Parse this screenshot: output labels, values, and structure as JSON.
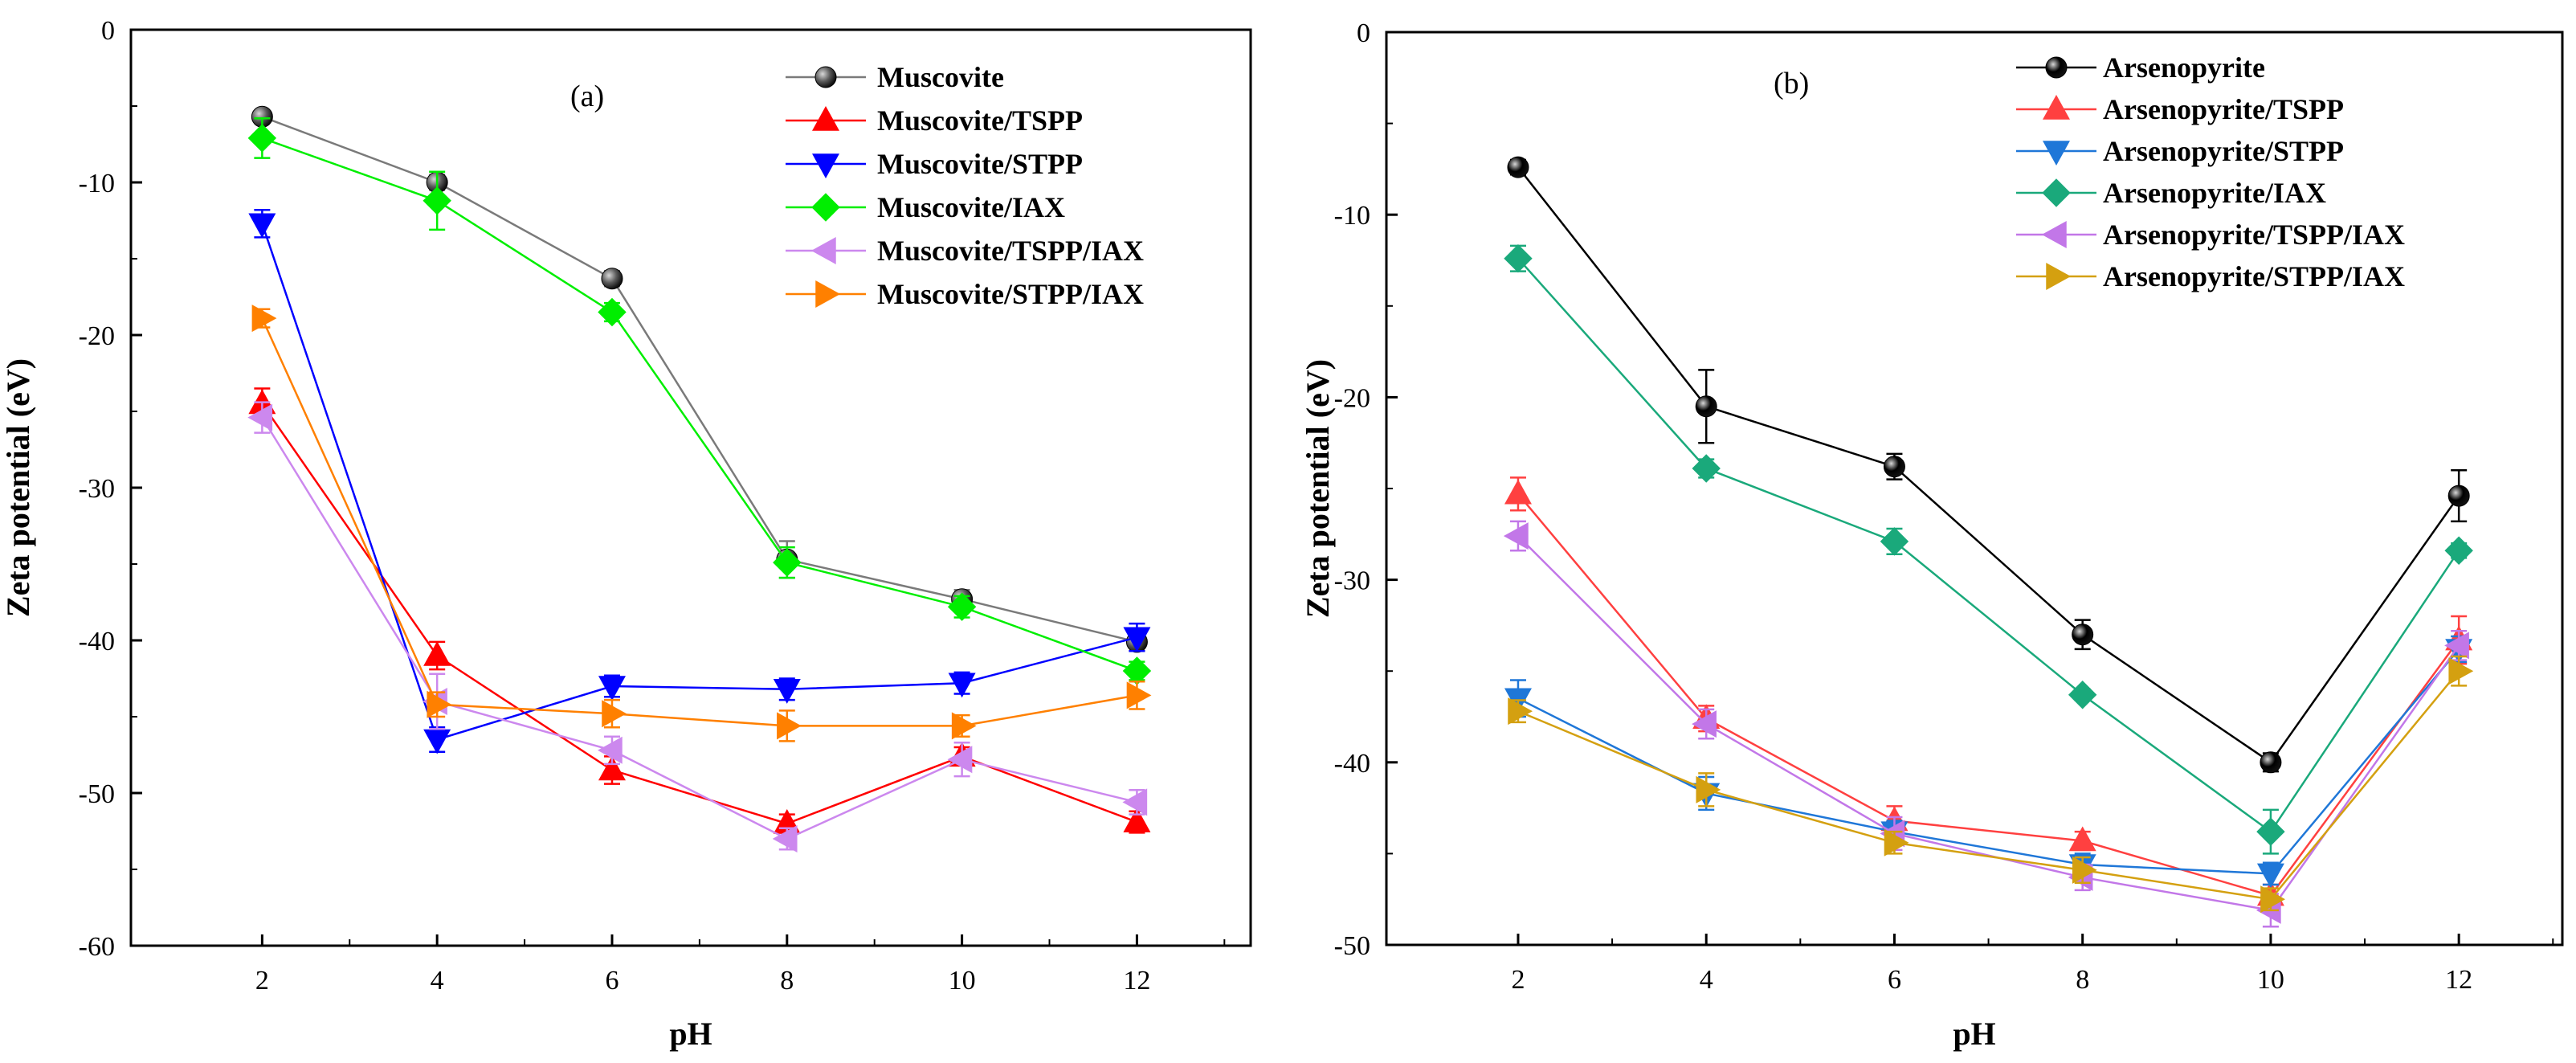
{
  "chart_data": [
    {
      "type": "line",
      "panel_label": "(a)",
      "xlabel": "pH",
      "ylabel": "Zeta potential (eV)",
      "x": [
        2,
        4,
        6,
        8,
        10,
        12
      ],
      "xlim": [
        0.5,
        13.3
      ],
      "ylim": [
        -60,
        0
      ],
      "xticks": [
        2,
        4,
        6,
        8,
        10,
        12
      ],
      "yticks": [
        0,
        -10,
        -20,
        -30,
        -40,
        -50,
        -60
      ],
      "legend_position": "top-right",
      "series": [
        {
          "name": "Muscovite",
          "color": "#5a5a5a",
          "line_color": "#7a7a7a",
          "marker": "circle",
          "values": [
            -5.7,
            -10.0,
            -16.3,
            -34.7,
            -37.3,
            -40.1
          ],
          "errors": [
            0.4,
            0.5,
            0.5,
            1.2,
            0.6,
            0.6
          ]
        },
        {
          "name": "Muscovite/TSPP",
          "color": "#ff0000",
          "line_color": "#ff0000",
          "marker": "triangle-up",
          "values": [
            -24.5,
            -41.0,
            -48.5,
            -52.0,
            -47.6,
            -51.9
          ],
          "errors": [
            1.0,
            0.9,
            0.9,
            0.6,
            0.6,
            0.7
          ]
        },
        {
          "name": "Muscovite/STPP",
          "color": "#0000ff",
          "line_color": "#0000ff",
          "marker": "triangle-down",
          "values": [
            -12.7,
            -46.5,
            -43.0,
            -43.2,
            -42.8,
            -39.8
          ],
          "errors": [
            0.9,
            0.8,
            0.7,
            0.7,
            0.7,
            0.9
          ]
        },
        {
          "name": "Muscovite/IAX",
          "color": "#00ee00",
          "line_color": "#00ee00",
          "marker": "diamond",
          "values": [
            -7.1,
            -11.2,
            -18.5,
            -34.9,
            -37.8,
            -42.0
          ],
          "errors": [
            1.3,
            1.9,
            0.6,
            1.0,
            0.7,
            0.6
          ]
        },
        {
          "name": "Muscovite/TSPP/IAX",
          "color": "#cc88ee",
          "line_color": "#cc88ee",
          "marker": "triangle-left",
          "values": [
            -25.4,
            -44.0,
            -47.2,
            -53.0,
            -47.8,
            -50.6
          ],
          "errors": [
            1.0,
            1.8,
            0.9,
            0.7,
            1.1,
            0.8
          ]
        },
        {
          "name": "Muscovite/STPP/IAX",
          "color": "#ff8000",
          "line_color": "#ff8000",
          "marker": "triangle-right",
          "values": [
            -18.9,
            -44.2,
            -44.8,
            -45.6,
            -45.6,
            -43.6
          ],
          "errors": [
            0.6,
            0.8,
            0.9,
            1.0,
            0.7,
            0.9
          ]
        }
      ]
    },
    {
      "type": "line",
      "panel_label": "(b)",
      "xlabel": "pH",
      "ylabel": "Zeta potential (eV)",
      "x": [
        2,
        4,
        6,
        8,
        10,
        12
      ],
      "xlim": [
        0.6,
        13.1
      ],
      "ylim": [
        -50,
        0
      ],
      "xticks": [
        2,
        4,
        6,
        8,
        10,
        12
      ],
      "yticks": [
        0,
        -10,
        -20,
        -30,
        -40,
        -50
      ],
      "legend_position": "top-right",
      "series": [
        {
          "name": "Arsenopyrite",
          "color": "#000000",
          "line_color": "#000000",
          "marker": "circle",
          "values": [
            -7.4,
            -20.5,
            -23.8,
            -33.0,
            -40.0,
            -25.4
          ],
          "errors": [
            0.4,
            2.0,
            0.7,
            0.8,
            0.5,
            1.4
          ]
        },
        {
          "name": "Arsenopyrite/TSPP",
          "color": "#ff4040",
          "line_color": "#ff4040",
          "marker": "triangle-up",
          "values": [
            -25.3,
            -37.6,
            -43.2,
            -44.3,
            -47.3,
            -33.3
          ],
          "errors": [
            0.9,
            0.7,
            0.8,
            0.5,
            0.6,
            1.3
          ]
        },
        {
          "name": "Arsenopyrite/STPP",
          "color": "#1f77d8",
          "line_color": "#1f77d8",
          "marker": "triangle-down",
          "values": [
            -36.5,
            -41.7,
            -43.8,
            -45.6,
            -46.1,
            -33.8
          ],
          "errors": [
            1.0,
            0.9,
            0.6,
            0.6,
            0.6,
            0.7
          ]
        },
        {
          "name": "Arsenopyrite/IAX",
          "color": "#1aa97b",
          "line_color": "#1aa97b",
          "marker": "diamond",
          "values": [
            -12.4,
            -23.9,
            -27.9,
            -36.3,
            -43.8,
            -28.4
          ],
          "errors": [
            0.7,
            0.5,
            0.7,
            0.3,
            1.2,
            0.4
          ]
        },
        {
          "name": "Arsenopyrite/TSPP/IAX",
          "color": "#c277e8",
          "line_color": "#c277e8",
          "marker": "triangle-left",
          "values": [
            -27.6,
            -37.9,
            -43.9,
            -46.3,
            -48.1,
            -33.6
          ],
          "errors": [
            0.8,
            0.8,
            0.9,
            0.7,
            0.9,
            0.8
          ]
        },
        {
          "name": "Arsenopyrite/STPP/IAX",
          "color": "#d4a010",
          "line_color": "#d4a010",
          "marker": "triangle-right",
          "values": [
            -37.2,
            -41.5,
            -44.4,
            -45.9,
            -47.5,
            -35.0
          ],
          "errors": [
            0.6,
            0.9,
            0.6,
            0.7,
            0.6,
            0.8
          ]
        }
      ]
    }
  ]
}
